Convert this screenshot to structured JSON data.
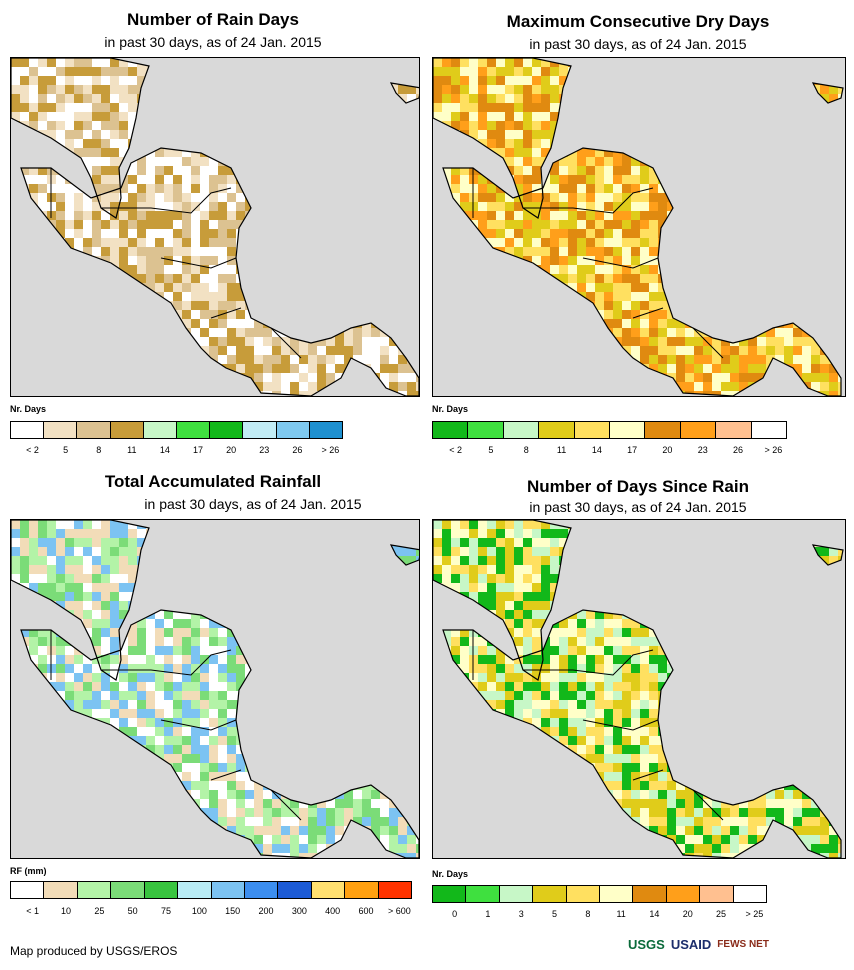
{
  "panels": [
    {
      "title": "Number of Rain Days",
      "subtitle": "in past 30 days, as of 24 Jan. 2015",
      "legend_label": "Nr. Days",
      "legend_colors": [
        "#ffffff",
        "#f2e1c3",
        "#dcc291",
        "#c79c3a",
        "#c7f7c7",
        "#3fe03f",
        "#12b81a",
        "#c2ecf5",
        "#7fc9f0",
        "#1e90d0"
      ],
      "legend_ticks": [
        "< 2",
        "5",
        "8",
        "11",
        "14",
        "17",
        "20",
        "23",
        "26",
        "> 26"
      ],
      "dominant_colors": [
        "#ffffff",
        "#f2e1c3",
        "#dcc291",
        "#c79c3a"
      ]
    },
    {
      "title": "Maximum Consecutive Dry Days",
      "subtitle": "in past 30 days, as of 24 Jan. 2015",
      "legend_label": "Nr. Days",
      "legend_colors": [
        "#12b81a",
        "#3fe03f",
        "#c7f7c7",
        "#e0cc1a",
        "#ffe060",
        "#ffffc8",
        "#e08a10",
        "#ff9f1a",
        "#ffc090",
        "#ffffff"
      ],
      "legend_ticks": [
        "< 2",
        "5",
        "8",
        "11",
        "14",
        "17",
        "20",
        "23",
        "26",
        "> 26"
      ],
      "dominant_colors": [
        "#ffe060",
        "#ffffc8",
        "#e0cc1a",
        "#e08a10",
        "#ff9f1a"
      ]
    },
    {
      "title": "Total Accumulated Rainfall",
      "subtitle": "in past 30 days, as of 24 Jan. 2015",
      "legend_label": "RF (mm)",
      "legend_colors": [
        "#ffffff",
        "#f2dcb8",
        "#b3f3a7",
        "#7bdc78",
        "#39c43f",
        "#b9ecf5",
        "#7cc3f2",
        "#3c8ef0",
        "#1c5bd6",
        "#ffe070",
        "#ffa010",
        "#ff3300"
      ],
      "legend_ticks": [
        "< 1",
        "10",
        "25",
        "50",
        "75",
        "100",
        "150",
        "200",
        "300",
        "400",
        "600",
        "> 600"
      ],
      "dominant_colors": [
        "#ffffff",
        "#f2dcb8",
        "#b3f3a7",
        "#7bdc78",
        "#7cc3f2"
      ]
    },
    {
      "title": "Number of Days Since Rain",
      "subtitle": "in past 30 days, as of 24 Jan. 2015",
      "legend_label": "Nr. Days",
      "legend_colors": [
        "#12b81a",
        "#3fe03f",
        "#c7f7c7",
        "#e0cc1a",
        "#ffe060",
        "#ffffc8",
        "#e08a10",
        "#ff9f1a",
        "#ffc090",
        "#ffffff"
      ],
      "legend_ticks": [
        "0",
        "1",
        "3",
        "5",
        "8",
        "11",
        "14",
        "20",
        "25",
        "> 25"
      ],
      "dominant_colors": [
        "#ffffc8",
        "#ffe060",
        "#c7f7c7",
        "#e0cc1a",
        "#12b81a"
      ]
    }
  ],
  "footer": "Map produced by USGS/EROS",
  "logos": {
    "usgs": "USGS",
    "usaid": "USAID",
    "fews": "FEWS NET"
  }
}
